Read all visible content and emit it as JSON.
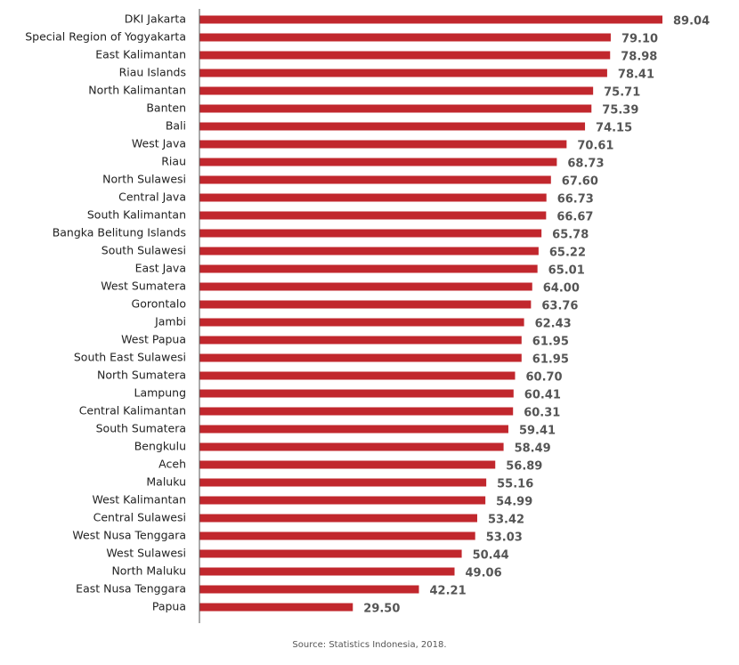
{
  "chart_data": {
    "type": "bar",
    "orientation": "horizontal",
    "categories": [
      "DKI Jakarta",
      "Special Region of Yogyakarta",
      "East Kalimantan",
      "Riau Islands",
      "North Kalimantan",
      "Banten",
      "Bali",
      "West Java",
      "Riau",
      "North Sulawesi",
      "Central Java",
      "South Kalimantan",
      "Bangka Belitung Islands",
      "South Sulawesi",
      "East Java",
      "West Sumatera",
      "Gorontalo",
      "Jambi",
      "West Papua",
      "South East Sulawesi",
      "North Sumatera",
      "Lampung",
      "Central Kalimantan",
      "South Sumatera",
      "Bengkulu",
      "Aceh",
      "Maluku",
      "West Kalimantan",
      "Central Sulawesi",
      "West Nusa Tenggara",
      "West Sulawesi",
      "North Maluku",
      "East Nusa Tenggara",
      "Papua"
    ],
    "values": [
      89.04,
      79.1,
      78.98,
      78.41,
      75.71,
      75.39,
      74.15,
      70.61,
      68.73,
      67.6,
      66.73,
      66.67,
      65.78,
      65.22,
      65.01,
      64.0,
      63.76,
      62.43,
      61.95,
      61.95,
      60.7,
      60.41,
      60.31,
      59.41,
      58.49,
      56.89,
      55.16,
      54.99,
      53.42,
      53.03,
      50.44,
      49.06,
      42.21,
      29.5
    ],
    "value_labels": [
      "89.04",
      "79.10",
      "78.98",
      "78.41",
      "75.71",
      "75.39",
      "74.15",
      "70.61",
      "68.73",
      "67.60",
      "66.73",
      "66.67",
      "65.78",
      "65.22",
      "65.01",
      "64.00",
      "63.76",
      "62.43",
      "61.95",
      "61.95",
      "60.70",
      "60.41",
      "60.31",
      "59.41",
      "58.49",
      "56.89",
      "55.16",
      "54.99",
      "53.42",
      "53.03",
      "50.44",
      "49.06",
      "42.21",
      "29.50"
    ],
    "xlim": [
      0,
      89.04
    ],
    "bar_color": "#c1272d",
    "grid": false,
    "legend": "none"
  },
  "source": "Source: Statistics Indonesia, 2018."
}
